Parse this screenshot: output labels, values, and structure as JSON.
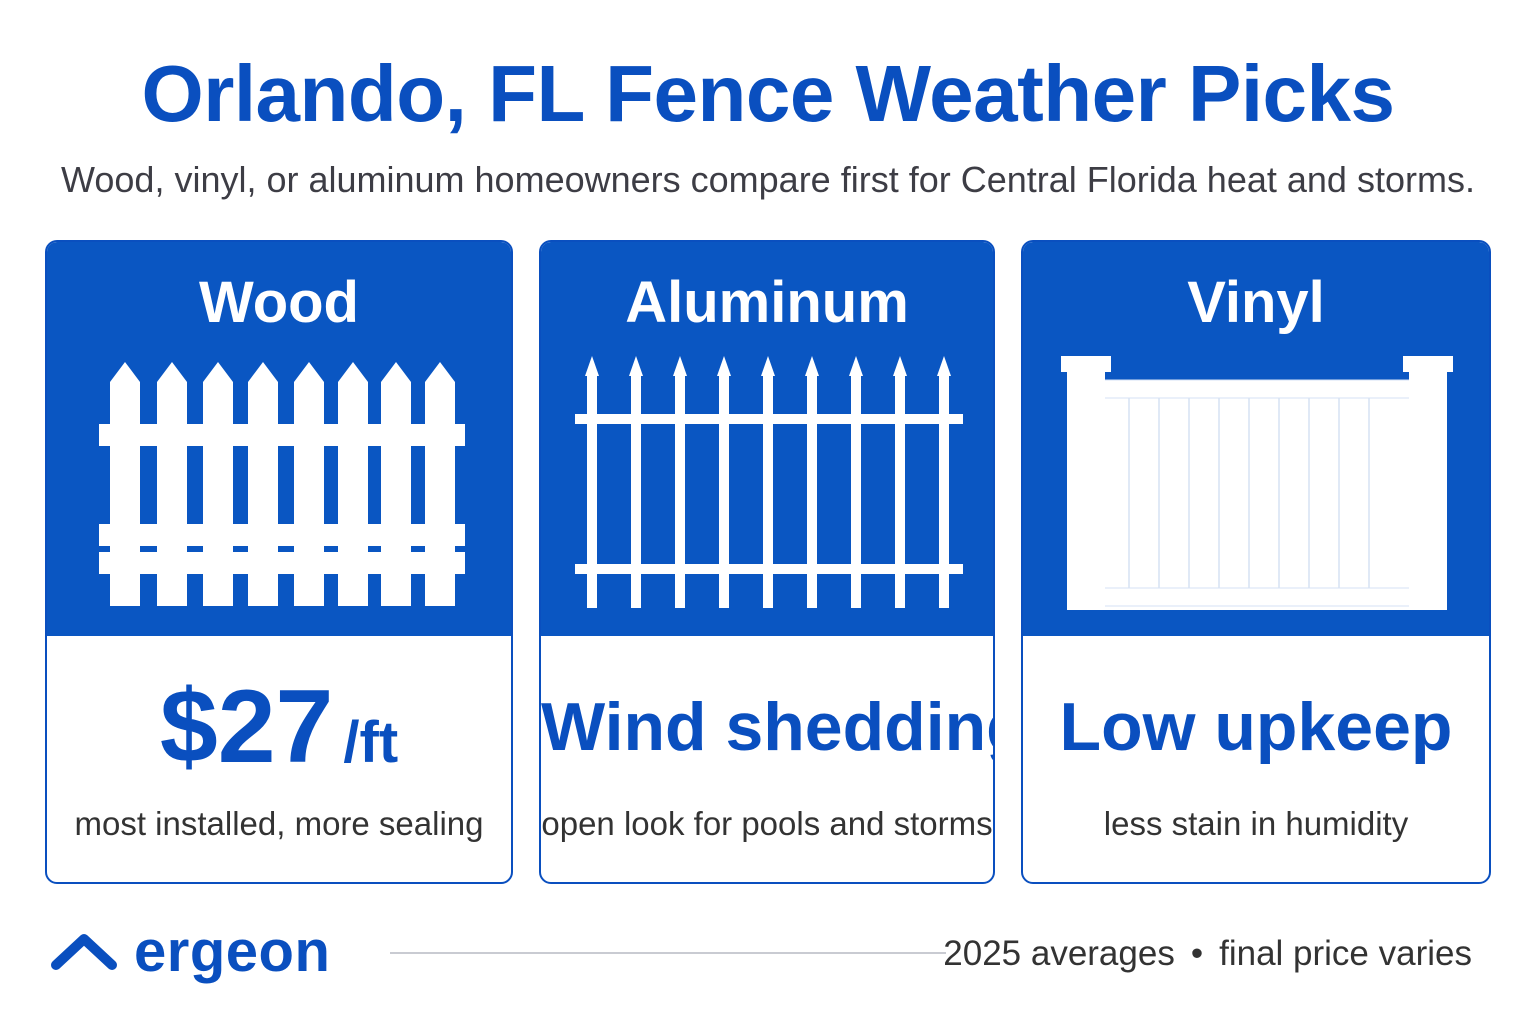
{
  "header": {
    "title": "Orlando, FL Fence Weather Picks",
    "subtitle": "Wood, vinyl, or aluminum homeowners compare first for Central Florida heat and storms."
  },
  "cards": [
    {
      "name": "Wood",
      "headline_main": "$27",
      "headline_unit": "/ft",
      "note": "most installed, more sealing",
      "icon": "picket-fence-icon"
    },
    {
      "name": "Aluminum",
      "headline_main": "Wind shedding",
      "headline_unit": "",
      "note": "open look for pools and storms",
      "icon": "spear-top-fence-icon"
    },
    {
      "name": "Vinyl",
      "headline_main": "Low upkeep",
      "headline_unit": "",
      "note": "less stain in humidity",
      "icon": "privacy-fence-icon"
    }
  ],
  "footer": {
    "brand": "ergeon",
    "note_left": "2025 averages",
    "separator": "•",
    "note_right": "final price varies"
  },
  "colors": {
    "brand_blue": "#0a4fbf",
    "panel_blue": "#0a56c2",
    "text_dark": "#333333"
  }
}
